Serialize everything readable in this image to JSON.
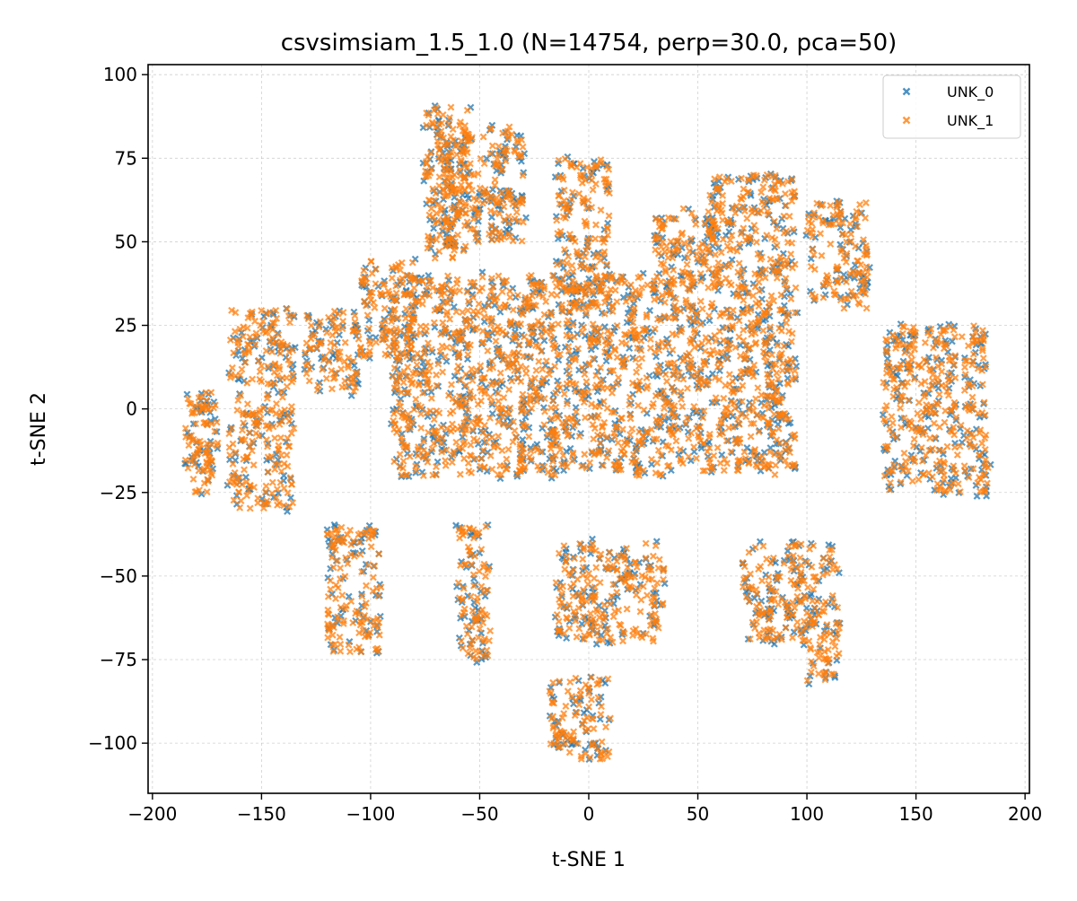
{
  "chart_data": {
    "type": "scatter",
    "title": "csvsimsiam_1.5_1.0  (N=14754, perp=30.0, pca=50)",
    "xlabel": "t-SNE 1",
    "ylabel": "t-SNE 2",
    "xlim": [
      -202,
      202
    ],
    "ylim": [
      -115,
      103
    ],
    "xticks": [
      -200,
      -150,
      -100,
      -50,
      0,
      50,
      100,
      150,
      200
    ],
    "xtick_labels": [
      "−200",
      "−150",
      "−100",
      "−50",
      "0",
      "50",
      "100",
      "150",
      "200"
    ],
    "yticks": [
      -100,
      -75,
      -50,
      -25,
      0,
      25,
      50,
      75,
      100
    ],
    "ytick_labels": [
      "−100",
      "−75",
      "−50",
      "−25",
      "0",
      "25",
      "50",
      "75",
      "100"
    ],
    "grid": true,
    "marker": "x",
    "legend_position": "top-right",
    "series": [
      {
        "name": "UNK_0",
        "color": "#1f77b4"
      },
      {
        "name": "UNK_1",
        "color": "#ff7f0e"
      }
    ],
    "clusters": [
      {
        "x": [
          -185,
          -170
        ],
        "y": [
          -25,
          5
        ]
      },
      {
        "x": [
          -165,
          -135
        ],
        "y": [
          -30,
          30
        ]
      },
      {
        "x": [
          -130,
          -105
        ],
        "y": [
          5,
          30
        ]
      },
      {
        "x": [
          -105,
          -80
        ],
        "y": [
          15,
          45
        ]
      },
      {
        "x": [
          -75,
          -55
        ],
        "y": [
          45,
          92
        ]
      },
      {
        "x": [
          -70,
          -30
        ],
        "y": [
          50,
          85
        ]
      },
      {
        "x": [
          -15,
          10
        ],
        "y": [
          30,
          75
        ]
      },
      {
        "x": [
          30,
          60
        ],
        "y": [
          35,
          60
        ]
      },
      {
        "x": [
          55,
          95
        ],
        "y": [
          40,
          70
        ]
      },
      {
        "x": [
          100,
          128
        ],
        "y": [
          30,
          62
        ]
      },
      {
        "x": [
          135,
          183
        ],
        "y": [
          -25,
          25
        ]
      },
      {
        "x": [
          -90,
          95
        ],
        "y": [
          -20,
          40
        ]
      },
      {
        "x": [
          -120,
          -95
        ],
        "y": [
          -73,
          -35
        ]
      },
      {
        "x": [
          -60,
          -45
        ],
        "y": [
          -75,
          -35
        ]
      },
      {
        "x": [
          -15,
          35
        ],
        "y": [
          -70,
          -40
        ]
      },
      {
        "x": [
          -18,
          10
        ],
        "y": [
          -105,
          -80
        ]
      },
      {
        "x": [
          70,
          100
        ],
        "y": [
          -70,
          -40
        ]
      },
      {
        "x": [
          100,
          115
        ],
        "y": [
          -82,
          -40
        ]
      }
    ]
  }
}
